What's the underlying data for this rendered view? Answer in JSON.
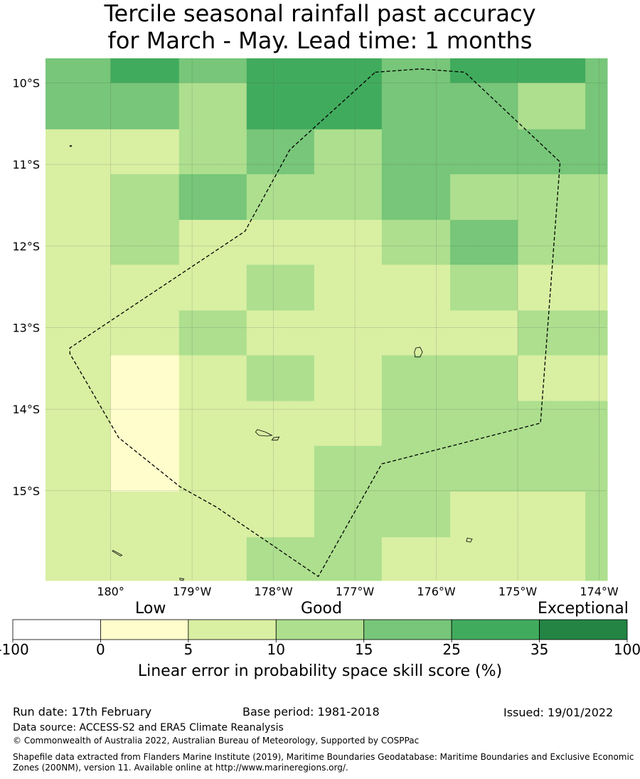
{
  "title": {
    "line1": "Tercile seasonal rainfall past accuracy",
    "line2": "for March - May. Lead time: 1 months"
  },
  "map": {
    "lat_labels": [
      "10°S",
      "11°S",
      "12°S",
      "13°S",
      "14°S",
      "15°S"
    ],
    "lon_labels": [
      "180°",
      "179°W",
      "178°W",
      "177°W",
      "176°W",
      "175°W",
      "174°W"
    ],
    "extent": {
      "lon_min": -180.8,
      "lon_max": -173.9,
      "lat_max": -9.7,
      "lat_min": -16.1
    },
    "grid_lon_edges": [
      -180.8,
      -180.0,
      -179.16,
      -178.33,
      -177.5,
      -176.67,
      -175.83,
      -175.0,
      -174.17,
      -173.9
    ],
    "grid_lat_edges": [
      -9.7,
      -10.0,
      -10.57,
      -11.12,
      -11.68,
      -12.23,
      -12.79,
      -13.34,
      -13.9,
      -14.45,
      -15.01,
      -15.57,
      -16.1
    ],
    "cells": [
      [
        4,
        5,
        4,
        5,
        5,
        4,
        5,
        5,
        4
      ],
      [
        4,
        4,
        3,
        5,
        5,
        4,
        4,
        3,
        4
      ],
      [
        2,
        2,
        3,
        4,
        3,
        4,
        4,
        4,
        4
      ],
      [
        2,
        3,
        4,
        3,
        3,
        4,
        3,
        3,
        3
      ],
      [
        2,
        3,
        2,
        2,
        2,
        3,
        4,
        3,
        3
      ],
      [
        2,
        2,
        2,
        3,
        2,
        2,
        3,
        2,
        2
      ],
      [
        2,
        2,
        3,
        2,
        2,
        2,
        2,
        3,
        3
      ],
      [
        2,
        1,
        2,
        3,
        2,
        3,
        3,
        2,
        2
      ],
      [
        2,
        1,
        2,
        2,
        2,
        3,
        3,
        3,
        3
      ],
      [
        2,
        1,
        2,
        2,
        3,
        3,
        3,
        3,
        3
      ],
      [
        2,
        2,
        2,
        2,
        3,
        3,
        2,
        2,
        3
      ],
      [
        2,
        2,
        2,
        3,
        3,
        2,
        2,
        2,
        3
      ]
    ],
    "eez_boundary": [
      [
        -176.75,
        -9.87
      ],
      [
        -176.2,
        -9.83
      ],
      [
        -175.65,
        -9.87
      ],
      [
        -174.48,
        -10.97
      ],
      [
        -174.72,
        -14.17
      ],
      [
        -176.67,
        -14.67
      ],
      [
        -177.45,
        -16.05
      ],
      [
        -178.7,
        -15.2
      ],
      [
        -179.15,
        -14.95
      ],
      [
        -179.9,
        -14.35
      ],
      [
        -180.5,
        -13.32
      ],
      [
        -180.5,
        -13.25
      ],
      [
        -178.35,
        -11.82
      ],
      [
        -177.8,
        -10.82
      ],
      [
        -176.75,
        -9.87
      ]
    ],
    "islands": [
      {
        "name": "island-1",
        "pts": [
          [
            -176.25,
            -13.25
          ],
          [
            -176.2,
            -13.24
          ],
          [
            -176.17,
            -13.3
          ],
          [
            -176.2,
            -13.36
          ],
          [
            -176.26,
            -13.36
          ],
          [
            -176.27,
            -13.3
          ]
        ]
      },
      {
        "name": "island-2",
        "pts": [
          [
            -178.2,
            -14.25
          ],
          [
            -178.1,
            -14.28
          ],
          [
            -178.02,
            -14.32
          ],
          [
            -178.08,
            -14.33
          ],
          [
            -178.18,
            -14.32
          ],
          [
            -178.22,
            -14.28
          ]
        ]
      },
      {
        "name": "island-3",
        "pts": [
          [
            -178.0,
            -14.35
          ],
          [
            -177.93,
            -14.34
          ],
          [
            -177.95,
            -14.38
          ],
          [
            -178.02,
            -14.38
          ]
        ]
      },
      {
        "name": "island-4",
        "pts": [
          [
            -175.62,
            -15.58
          ],
          [
            -175.56,
            -15.59
          ],
          [
            -175.58,
            -15.63
          ],
          [
            -175.63,
            -15.62
          ]
        ]
      },
      {
        "name": "island-5",
        "pts": [
          [
            -179.97,
            -15.73
          ],
          [
            -179.86,
            -15.79
          ],
          [
            -179.88,
            -15.8
          ],
          [
            -179.98,
            -15.74
          ]
        ]
      },
      {
        "name": "island-6",
        "pts": [
          [
            -180.5,
            -10.77
          ],
          [
            -180.48,
            -10.77
          ],
          [
            -180.48,
            -10.78
          ],
          [
            -180.5,
            -10.78
          ]
        ]
      },
      {
        "name": "island-7",
        "pts": [
          [
            -179.15,
            -16.07
          ],
          [
            -179.1,
            -16.08
          ],
          [
            -179.11,
            -16.1
          ],
          [
            -179.15,
            -16.09
          ]
        ]
      }
    ]
  },
  "colorbar": {
    "categories": [
      "Low",
      "Good",
      "Exceptional"
    ],
    "tick_labels": [
      "-100",
      "0",
      "5",
      "10",
      "15",
      "25",
      "35",
      "100"
    ],
    "colors": [
      "#ffffff",
      "#fffdcc",
      "#d9efa2",
      "#addf8e",
      "#77c679",
      "#41ab5d",
      "#238443"
    ],
    "title": "Linear error in probability space skill score (%)"
  },
  "footer": {
    "run_date": "Run date: 17th February",
    "base_period": "Base period: 1981-2018",
    "issued": "Issued: 19/01/2022",
    "data_source": "Data source: ACCESS-S2 and ERA5 Climate Reanalysis",
    "copyright": "© Commonwealth of Australia 2022, Australian Bureau of Meteorology, Supported by COSPPac",
    "shapefile_line1": "Shapefile data extracted from Flanders Marine Institute (2019), Maritime Boundaries Geodatabase: Maritime Boundaries and Exclusive Economic",
    "shapefile_line2": "Zones (200NM), version 11. Available online at http://www.marineregions.org/."
  }
}
